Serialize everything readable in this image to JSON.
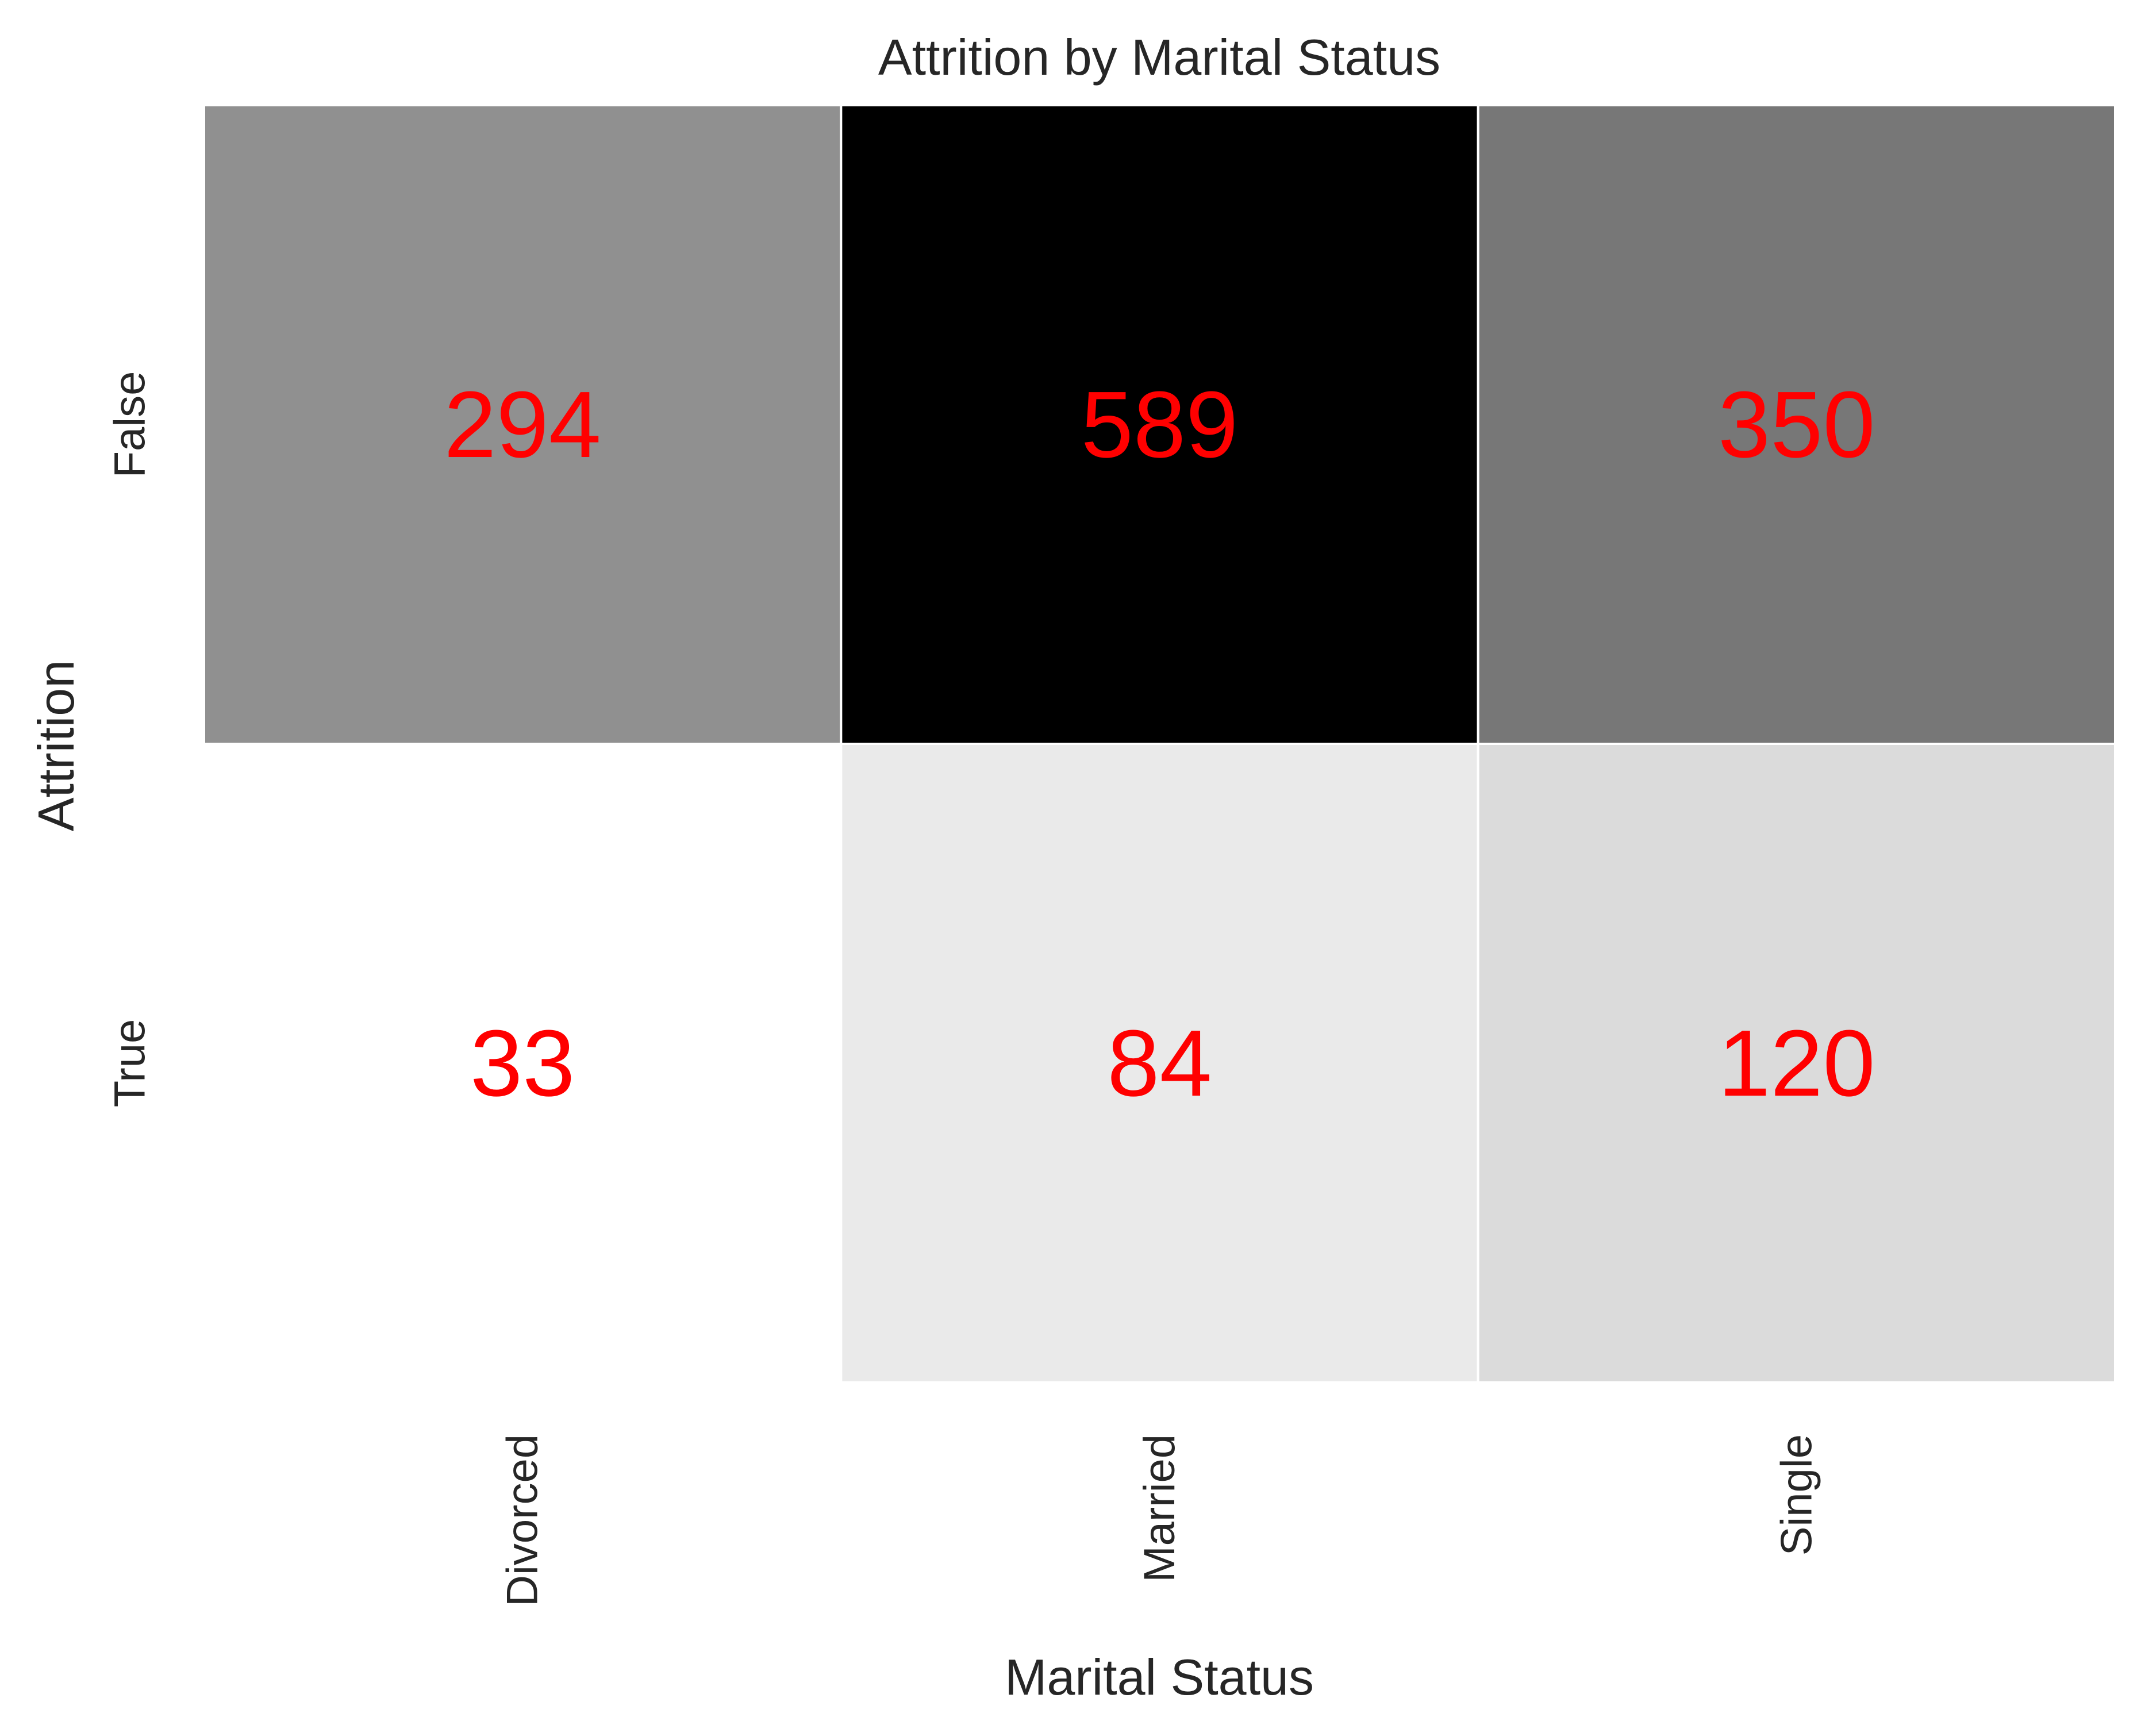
{
  "chart_data": {
    "type": "heatmap",
    "title": "Attrition by Marital Status",
    "xlabel": "Marital Status",
    "ylabel": "Attrition",
    "x_categories": [
      "Divorced",
      "Married",
      "Single"
    ],
    "y_categories": [
      "False",
      "True"
    ],
    "values": [
      [
        294,
        589,
        350
      ],
      [
        33,
        84,
        120
      ]
    ],
    "colormap": "Greys",
    "value_range": [
      33,
      589
    ],
    "cell_label_color": "#ff0000",
    "cell_border_color": "#ffffff",
    "grid": false,
    "legend": "none"
  }
}
